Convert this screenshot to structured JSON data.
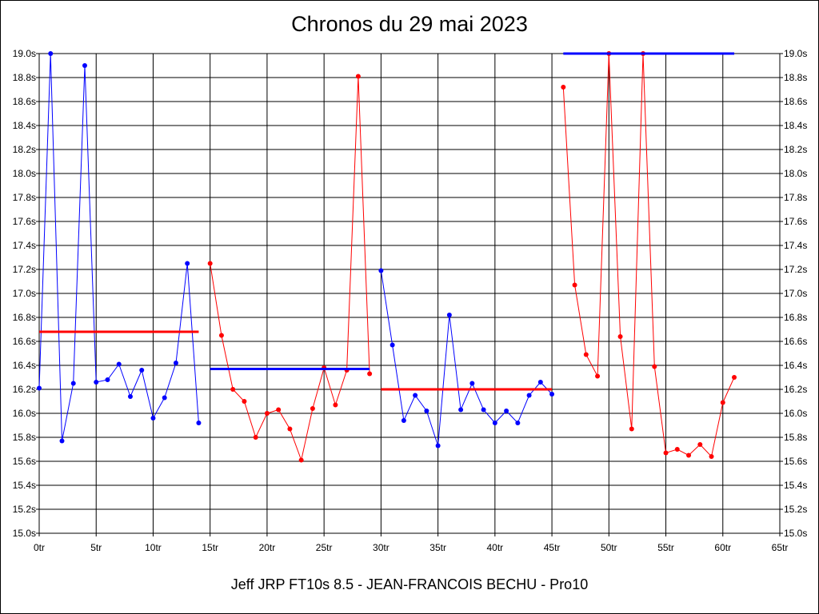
{
  "chart_data": {
    "type": "line",
    "title": "Chronos du 29 mai 2023",
    "footer": "Jeff JRP FT10s 8.5 - JEAN-FRANCOIS BECHU - Pro10",
    "xlim": [
      0,
      65
    ],
    "ylim": [
      15.0,
      19.0
    ],
    "x_ticks": [
      0,
      5,
      10,
      15,
      20,
      25,
      30,
      35,
      40,
      45,
      50,
      55,
      60,
      65
    ],
    "x_tick_labels": [
      "0tr",
      "5tr",
      "10tr",
      "15tr",
      "20tr",
      "25tr",
      "30tr",
      "35tr",
      "40tr",
      "45tr",
      "50tr",
      "55tr",
      "60tr",
      "65tr"
    ],
    "y_ticks": [
      15.0,
      15.2,
      15.4,
      15.6,
      15.8,
      16.0,
      16.2,
      16.4,
      16.6,
      16.8,
      17.0,
      17.2,
      17.4,
      17.6,
      17.8,
      18.0,
      18.2,
      18.4,
      18.6,
      18.8,
      19.0
    ],
    "y_tick_labels": [
      "15.0s",
      "15.2s",
      "15.4s",
      "15.6s",
      "15.8s",
      "16.0s",
      "16.2s",
      "16.4s",
      "16.6s",
      "16.8s",
      "17.0s",
      "17.2s",
      "17.4s",
      "17.6s",
      "17.8s",
      "18.0s",
      "18.2s",
      "18.4s",
      "18.6s",
      "18.8s",
      "19.0s"
    ],
    "grid": true,
    "series": [
      {
        "color": "#0000ff",
        "x": [
          0,
          1,
          2,
          3,
          4,
          5,
          6,
          7,
          8,
          9,
          10,
          11,
          12,
          13,
          14
        ],
        "y": [
          16.21,
          19.0,
          15.77,
          16.25,
          18.9,
          16.26,
          16.28,
          16.41,
          16.14,
          16.36,
          15.96,
          16.13,
          16.42,
          17.25,
          15.92
        ]
      },
      {
        "color": "#ff0000",
        "x": [
          15,
          16,
          17,
          18,
          19,
          20,
          21,
          22,
          23,
          24,
          25,
          26,
          27,
          28,
          29
        ],
        "y": [
          17.25,
          16.65,
          16.2,
          16.1,
          15.8,
          16.0,
          16.03,
          15.87,
          15.61,
          16.04,
          16.38,
          16.07,
          16.36,
          18.81,
          16.33
        ]
      },
      {
        "color": "#0000ff",
        "x": [
          30,
          31,
          32,
          33,
          34,
          35,
          36,
          37,
          38,
          39,
          40,
          41,
          42,
          43,
          44,
          45
        ],
        "y": [
          17.19,
          16.57,
          15.94,
          16.15,
          16.02,
          15.73,
          16.82,
          16.03,
          16.25,
          16.03,
          15.92,
          16.02,
          15.92,
          16.15,
          16.26,
          16.16
        ]
      },
      {
        "color": "#ff0000",
        "x": [
          46,
          47,
          48,
          49,
          50,
          51,
          52,
          53,
          54,
          55,
          56,
          57,
          58,
          59,
          60,
          61
        ],
        "y": [
          18.72,
          17.07,
          16.49,
          16.31,
          19.0,
          16.64,
          15.87,
          19.0,
          16.39,
          15.67,
          15.7,
          15.65,
          15.74,
          15.64,
          16.09,
          16.3
        ]
      }
    ],
    "average_lines": [
      {
        "color": "#ff0000",
        "x": [
          0,
          14
        ],
        "y": 16.68
      },
      {
        "color": "#0000ff",
        "x": [
          15,
          29
        ],
        "y": 16.37
      },
      {
        "color": "#ff0000",
        "x": [
          30,
          45
        ],
        "y": 16.2
      },
      {
        "color": "#0000ff",
        "x": [
          46,
          61
        ],
        "y": 19.0
      }
    ]
  }
}
